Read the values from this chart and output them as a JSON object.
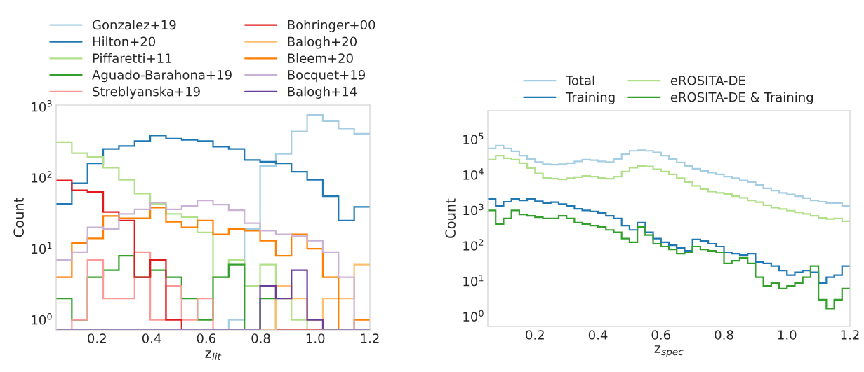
{
  "chart_data": [
    {
      "type": "histogram",
      "xlabel": "z$_{lit}$",
      "ylabel": "Count",
      "log": "y",
      "grid": false,
      "legend": "top",
      "bins": [
        0.05,
        0.1075,
        0.165,
        0.2225,
        0.28,
        0.3375,
        0.395,
        0.4525,
        0.51,
        0.5675,
        0.625,
        0.6825,
        0.74,
        0.7975,
        0.855,
        0.9125,
        0.97,
        1.0275,
        1.085,
        1.1425,
        1.2
      ],
      "xlim": [
        0.05,
        1.2
      ],
      "xticks": [
        {
          "value": 0.2,
          "label": "0.2"
        },
        {
          "value": 0.4,
          "label": "0.4"
        },
        {
          "value": 0.6,
          "label": "0.6"
        },
        {
          "value": 0.8,
          "label": "0.8"
        },
        {
          "value": 1.0,
          "label": "1.0"
        },
        {
          "value": 1.2,
          "label": "1.2"
        }
      ],
      "ylim": [
        0.72,
        1060
      ],
      "yticks": [
        {
          "value": 1,
          "label": "10$^{0}$"
        },
        {
          "value": 10,
          "label": "10$^{1}$"
        },
        {
          "value": 100,
          "label": "10$^{2}$"
        },
        {
          "value": 1000,
          "label": "10$^{3}$"
        }
      ],
      "series": [
        {
          "name": "Gonzalez+19",
          "color": "#a6cee3",
          "values": [
            null,
            null,
            null,
            null,
            null,
            null,
            null,
            null,
            null,
            null,
            null,
            1,
            19,
            147,
            218,
            452,
            771,
            629,
            497,
            418
          ]
        },
        {
          "name": "Hilton+20",
          "color": "#1f78b4",
          "values": [
            43,
            84,
            160,
            255,
            282,
            330,
            395,
            357,
            343,
            330,
            275,
            255,
            179,
            169,
            160,
            122,
            94,
            55,
            25,
            39
          ]
        },
        {
          "name": "Piffaretti+11",
          "color": "#b2df8a",
          "values": [
            318,
            223,
            198,
            139,
            94,
            60,
            43,
            31,
            28,
            17,
            4,
            7,
            3,
            6,
            2,
            1,
            null,
            null,
            null,
            null
          ]
        },
        {
          "name": "Aguado-Barahona+19",
          "color": "#33a02c",
          "values": [
            2,
            1,
            4,
            5,
            8,
            4,
            5,
            4,
            2,
            1,
            4,
            6,
            null,
            2,
            null,
            null,
            null,
            null,
            null,
            null
          ]
        },
        {
          "name": "Streblyanska+19",
          "color": "#fb9a99",
          "values": [
            null,
            1,
            7,
            2,
            2,
            9,
            1,
            3,
            1,
            2,
            null,
            null,
            null,
            null,
            null,
            null,
            null,
            null,
            null,
            null
          ]
        },
        {
          "name": "Bohringer+00",
          "color": "#e31a1c",
          "values": [
            92,
            67,
            63,
            33,
            25,
            4,
            7,
            1,
            null,
            null,
            null,
            null,
            null,
            null,
            null,
            null,
            null,
            null,
            null,
            null
          ]
        },
        {
          "name": "Balogh+20",
          "color": "#fdbf6f",
          "values": [
            null,
            null,
            null,
            null,
            null,
            null,
            null,
            null,
            null,
            null,
            null,
            null,
            null,
            null,
            3,
            2,
            1,
            2,
            2,
            6
          ]
        },
        {
          "name": "Bleem+20",
          "color": "#ff7f00",
          "values": [
            4,
            12,
            14,
            29,
            27,
            27,
            38,
            24,
            20,
            25,
            16,
            19,
            18,
            13,
            8,
            16,
            10,
            4,
            null,
            1
          ]
        },
        {
          "name": "Bocquet+19",
          "color": "#cab2d6",
          "values": [
            7,
            9,
            20,
            19,
            31,
            36,
            45,
            36,
            40,
            48,
            42,
            35,
            23,
            18,
            16,
            15,
            13,
            9,
            4,
            null
          ]
        },
        {
          "name": "Balogh+14",
          "color": "#6a3d9a",
          "values": [
            null,
            null,
            null,
            null,
            null,
            null,
            null,
            null,
            null,
            null,
            null,
            null,
            null,
            3,
            2,
            5,
            1,
            null,
            null,
            null
          ]
        }
      ]
    },
    {
      "type": "histogram",
      "xlabel": "z$_{spec}$",
      "ylabel": "Count",
      "log": "y",
      "grid": false,
      "legend": "top",
      "bins": [
        0.05,
        0.075,
        0.1,
        0.125,
        0.15,
        0.175,
        0.2,
        0.225,
        0.25,
        0.275,
        0.3,
        0.325,
        0.35,
        0.375,
        0.4,
        0.425,
        0.45,
        0.475,
        0.5,
        0.525,
        0.55,
        0.575,
        0.6,
        0.625,
        0.65,
        0.675,
        0.7,
        0.725,
        0.75,
        0.775,
        0.8,
        0.825,
        0.85,
        0.875,
        0.9,
        0.925,
        0.95,
        0.975,
        1.0,
        1.025,
        1.05,
        1.075,
        1.1,
        1.125,
        1.15,
        1.175,
        1.2
      ],
      "xlim": [
        0.05,
        1.2
      ],
      "xticks": [
        {
          "value": 0.2,
          "label": "0.2"
        },
        {
          "value": 0.4,
          "label": "0.4"
        },
        {
          "value": 0.6,
          "label": "0.6"
        },
        {
          "value": 0.8,
          "label": "0.8"
        },
        {
          "value": 1.0,
          "label": "1.0"
        },
        {
          "value": 1.2,
          "label": "1.2"
        }
      ],
      "ylim": [
        0.53,
        650000
      ],
      "yticks": [
        {
          "value": 1,
          "label": "10$^{0}$"
        },
        {
          "value": 10,
          "label": "10$^{1}$"
        },
        {
          "value": 100,
          "label": "10$^{2}$"
        },
        {
          "value": 1000,
          "label": "10$^{3}$"
        },
        {
          "value": 10000,
          "label": "10$^{4}$"
        },
        {
          "value": 100000,
          "label": "10$^{5}$"
        }
      ],
      "series": [
        {
          "name": "Total",
          "color": "#a6cee3",
          "values": [
            56000,
            67000,
            56000,
            46500,
            35000,
            28000,
            23000,
            20000,
            19400,
            20000,
            21600,
            24000,
            27000,
            26000,
            24000,
            23000,
            28000,
            39000,
            48000,
            50000,
            48000,
            43000,
            35000,
            28000,
            22500,
            18000,
            15000,
            13000,
            11600,
            10400,
            9000,
            8100,
            7000,
            6300,
            5200,
            4200,
            3600,
            3100,
            2800,
            2500,
            2200,
            1900,
            1750,
            1600,
            1600,
            1330
          ]
        },
        {
          "name": "Training",
          "color": "#1f78b4",
          "values": [
            2100,
            1330,
            1750,
            2100,
            1900,
            2100,
            1800,
            1600,
            1700,
            1500,
            1330,
            1100,
            1000,
            930,
            850,
            700,
            590,
            370,
            280,
            450,
            240,
            160,
            125,
            104,
            87,
            72,
            150,
            137,
            114,
            95,
            66,
            60,
            55,
            60,
            35,
            32,
            27,
            20,
            15,
            18,
            20,
            18,
            8.9,
            13,
            15,
            27
          ]
        },
        {
          "name": "eROSITA-DE",
          "color": "#b2df8a",
          "values": [
            27000,
            35000,
            29500,
            27000,
            21600,
            15600,
            11000,
            8200,
            7800,
            7500,
            8100,
            8700,
            9400,
            9000,
            8200,
            7800,
            9000,
            12500,
            16000,
            17700,
            17400,
            14500,
            12500,
            10400,
            8100,
            6300,
            4900,
            4000,
            3400,
            3100,
            2900,
            2500,
            2260,
            1900,
            1700,
            1400,
            1200,
            1090,
            980,
            880,
            790,
            700,
            610,
            570,
            590,
            490
          ]
        },
        {
          "name": "eROSITA-DE & Training",
          "color": "#33a02c",
          "values": [
            1000,
            410,
            590,
            1000,
            770,
            700,
            640,
            590,
            590,
            700,
            590,
            450,
            410,
            370,
            340,
            280,
            240,
            160,
            125,
            340,
            200,
            114,
            95,
            79,
            60,
            66,
            95,
            79,
            72,
            66,
            32,
            38,
            46,
            32,
            13,
            7.4,
            8.9,
            6.2,
            7.4,
            8.9,
            13,
            27,
            3,
            1.7,
            3,
            6.2
          ]
        }
      ]
    }
  ]
}
